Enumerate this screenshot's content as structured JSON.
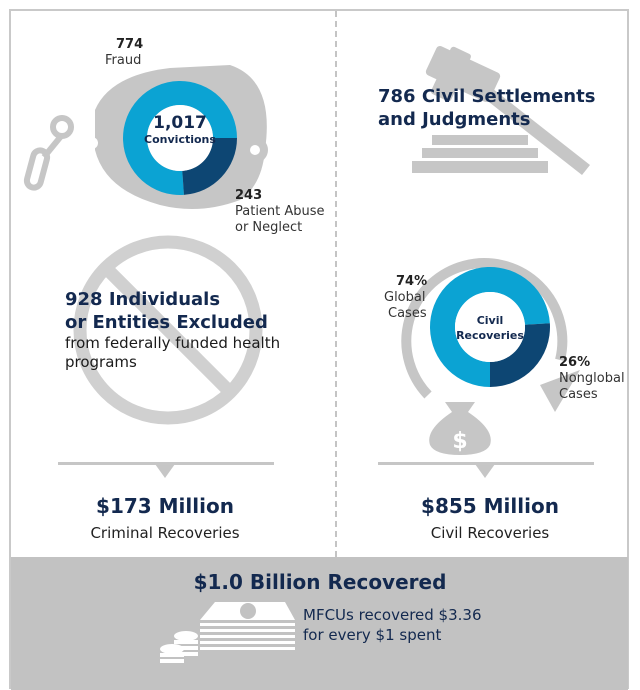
{
  "colors": {
    "primary": "#0ba3d3",
    "secondary": "#0d4673",
    "navy": "#13294f",
    "gray": "#c6c6c6"
  },
  "convictions": {
    "total": "1,017",
    "label": "Convictions",
    "segments": [
      {
        "value": "774",
        "label": "Fraud",
        "count": 774
      },
      {
        "value": "243",
        "label_line1": "Patient Abuse",
        "label_line2": "or Neglect",
        "count": 243
      }
    ],
    "icon": "handcuffs-icon"
  },
  "settlements": {
    "line1": "786 Civil Settlements",
    "line2": "and Judgments",
    "icon": "gavel-icon"
  },
  "exclusions": {
    "line1": "928 Individuals",
    "line2": "or Entities Excluded",
    "desc_line1": "from federally funded health",
    "desc_line2": "programs",
    "icon": "prohibited-icon"
  },
  "civil_recoveries": {
    "center_line1": "Civil",
    "center_line2": "Recoveries",
    "segments": [
      {
        "value": "74%",
        "line1": "Global",
        "line2": "Cases",
        "percent": 74
      },
      {
        "value": "26%",
        "line1": "Nonglobal",
        "line2": "Cases",
        "percent": 26
      }
    ],
    "icon": "money-bag-icon"
  },
  "criminal_total": {
    "amount": "$173 Million",
    "label": "Criminal Recoveries"
  },
  "civil_total": {
    "amount": "$855 Million",
    "label": "Civil Recoveries"
  },
  "footer": {
    "title": "$1.0 Billion Recovered",
    "line1": "MFCUs recovered $3.36",
    "line2": "for every $1 spent",
    "icon": "cash-stack-icon"
  }
}
